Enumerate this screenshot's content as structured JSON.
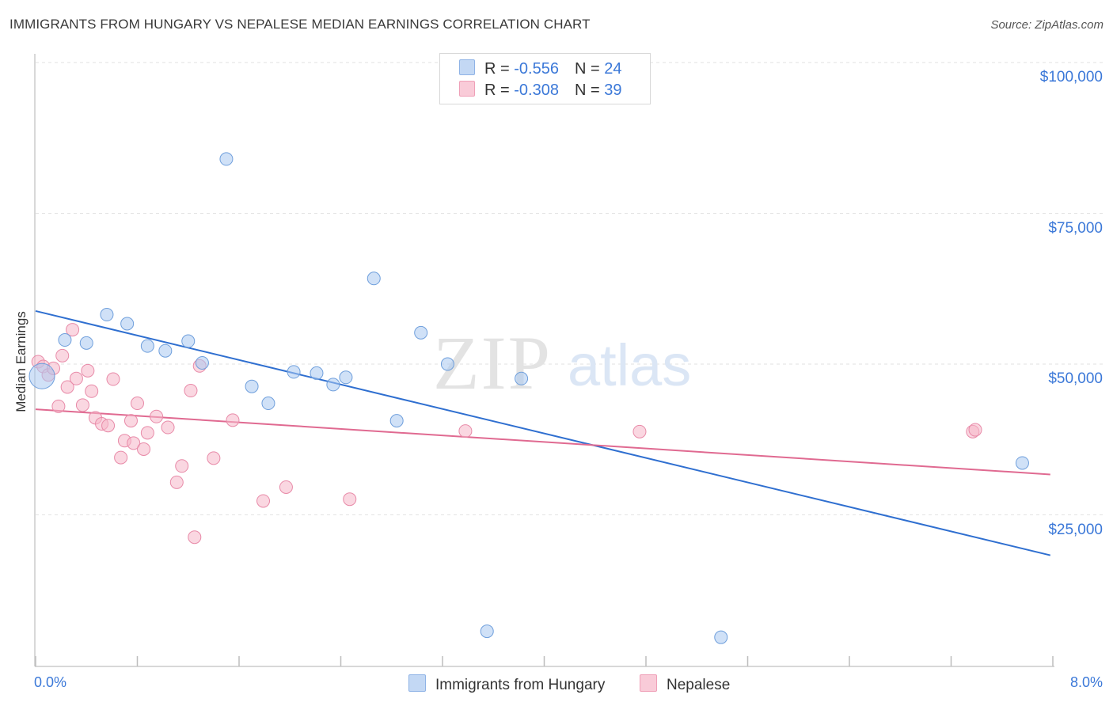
{
  "title": "IMMIGRANTS FROM HUNGARY VS NEPALESE MEDIAN EARNINGS CORRELATION CHART",
  "source": "Source: ZipAtlas.com",
  "watermark": {
    "zip": "ZIP",
    "atlas": "atlas"
  },
  "legend": {
    "rows": [
      {
        "r_label": "R = ",
        "r_value": "-0.556",
        "n_label": "N = ",
        "n_value": "24",
        "color": "#a9c8f0"
      },
      {
        "r_label": "R = ",
        "r_value": "-0.308",
        "n_label": "N = ",
        "n_value": "39",
        "color": "#f6b6c9"
      }
    ]
  },
  "chart_data": {
    "type": "scatter",
    "title": "IMMIGRANTS FROM HUNGARY VS NEPALESE MEDIAN EARNINGS CORRELATION CHART",
    "xlabel": "",
    "ylabel": "Median Earnings",
    "xlim": [
      0,
      8
    ],
    "ylim": [
      0,
      105000
    ],
    "x_tick_labels": [
      "0.0%",
      "8.0%"
    ],
    "y_ticks": [
      25000,
      50000,
      75000,
      100000
    ],
    "y_tick_labels": [
      "$25,000",
      "$50,000",
      "$75,000",
      "$100,000"
    ],
    "grid": true,
    "legend_position": "top-center",
    "series": [
      {
        "name": "Immigrants from Hungary",
        "color": "#a9c8f0",
        "stroke": "#6f9fdc",
        "trend_color": "#2f6fd0",
        "trend": {
          "x": [
            0,
            7.98
          ],
          "y": [
            58800,
            18300
          ]
        },
        "points": [
          {
            "x": 0.05,
            "y": 48000,
            "big": true
          },
          {
            "x": 0.23,
            "y": 54000
          },
          {
            "x": 0.4,
            "y": 53500
          },
          {
            "x": 0.56,
            "y": 58200
          },
          {
            "x": 0.72,
            "y": 56700
          },
          {
            "x": 0.88,
            "y": 53000
          },
          {
            "x": 1.02,
            "y": 52200
          },
          {
            "x": 1.2,
            "y": 53800
          },
          {
            "x": 1.31,
            "y": 50200
          },
          {
            "x": 1.5,
            "y": 84000
          },
          {
            "x": 1.7,
            "y": 46300
          },
          {
            "x": 1.83,
            "y": 43500
          },
          {
            "x": 2.03,
            "y": 48700
          },
          {
            "x": 2.21,
            "y": 48500
          },
          {
            "x": 2.34,
            "y": 46600
          },
          {
            "x": 2.44,
            "y": 47800
          },
          {
            "x": 2.66,
            "y": 64200
          },
          {
            "x": 2.84,
            "y": 40600
          },
          {
            "x": 3.03,
            "y": 55200
          },
          {
            "x": 3.24,
            "y": 50000
          },
          {
            "x": 3.55,
            "y": 5700
          },
          {
            "x": 3.82,
            "y": 47600
          },
          {
            "x": 5.39,
            "y": 4700
          },
          {
            "x": 7.76,
            "y": 33600
          }
        ]
      },
      {
        "name": "Nepalese",
        "color": "#f6b6c9",
        "stroke": "#e88aa8",
        "trend_color": "#e06a91",
        "trend": {
          "x": [
            0,
            7.98
          ],
          "y": [
            42500,
            31700
          ]
        },
        "points": [
          {
            "x": 0.02,
            "y": 50400
          },
          {
            "x": 0.06,
            "y": 49600
          },
          {
            "x": 0.1,
            "y": 48200
          },
          {
            "x": 0.14,
            "y": 49300
          },
          {
            "x": 0.18,
            "y": 43000
          },
          {
            "x": 0.21,
            "y": 51400
          },
          {
            "x": 0.25,
            "y": 46200
          },
          {
            "x": 0.29,
            "y": 55700
          },
          {
            "x": 0.32,
            "y": 47600
          },
          {
            "x": 0.37,
            "y": 43200
          },
          {
            "x": 0.41,
            "y": 48900
          },
          {
            "x": 0.44,
            "y": 45500
          },
          {
            "x": 0.47,
            "y": 41100
          },
          {
            "x": 0.52,
            "y": 40100
          },
          {
            "x": 0.57,
            "y": 39800
          },
          {
            "x": 0.61,
            "y": 47500
          },
          {
            "x": 0.67,
            "y": 34500
          },
          {
            "x": 0.7,
            "y": 37300
          },
          {
            "x": 0.75,
            "y": 40600
          },
          {
            "x": 0.77,
            "y": 36900
          },
          {
            "x": 0.8,
            "y": 43500
          },
          {
            "x": 0.85,
            "y": 35900
          },
          {
            "x": 0.88,
            "y": 38600
          },
          {
            "x": 0.95,
            "y": 41300
          },
          {
            "x": 1.04,
            "y": 39500
          },
          {
            "x": 1.11,
            "y": 30400
          },
          {
            "x": 1.15,
            "y": 33100
          },
          {
            "x": 1.22,
            "y": 45600
          },
          {
            "x": 1.25,
            "y": 21300
          },
          {
            "x": 1.29,
            "y": 49700
          },
          {
            "x": 1.4,
            "y": 34400
          },
          {
            "x": 1.55,
            "y": 40700
          },
          {
            "x": 1.79,
            "y": 27300
          },
          {
            "x": 1.97,
            "y": 29600
          },
          {
            "x": 2.47,
            "y": 27600
          },
          {
            "x": 3.38,
            "y": 38900
          },
          {
            "x": 4.75,
            "y": 38800
          },
          {
            "x": 7.37,
            "y": 38800
          },
          {
            "x": 7.39,
            "y": 39100
          }
        ]
      }
    ]
  }
}
